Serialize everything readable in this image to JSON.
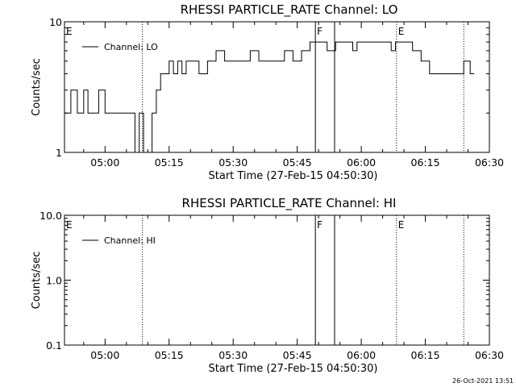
{
  "footer": "26-Oct-2021 13:51",
  "chart_data": [
    {
      "type": "line",
      "title": "RHESSI PARTICLE_RATE Channel: LO",
      "xlabel": "Start Time (27-Feb-15 04:50:30)",
      "ylabel": "Counts/sec",
      "y_scale": "log",
      "xlim": [
        "04:50:30",
        "06:30"
      ],
      "ylim": [
        1,
        10
      ],
      "x_ticks": [
        "05:00",
        "05:15",
        "05:30",
        "05:45",
        "06:00",
        "06:15",
        "06:30"
      ],
      "y_ticks": [
        "1",
        "10"
      ],
      "legend": {
        "label": "Channel: LO",
        "placement": "top-left"
      },
      "series": [
        {
          "name": "Channel: LO",
          "x": [
            "04:50:30",
            "04:52:00",
            "04:53:30",
            "04:55:00",
            "04:56:00",
            "04:57:00",
            "04:58:30",
            "05:00:00",
            "05:01:30",
            "05:03:00",
            "05:04:00",
            "05:05:00",
            "05:06:00",
            "05:07:00",
            "05:08:00",
            "05:09:00",
            "05:10:00",
            "05:11:00",
            "05:12:00",
            "05:13:00",
            "05:14:00",
            "05:15:00",
            "05:16:00",
            "05:17:00",
            "05:18:00",
            "05:19:00",
            "05:20:00",
            "05:22:00",
            "05:24:00",
            "05:25:00",
            "05:26:00",
            "05:28:00",
            "05:30:00",
            "05:32:00",
            "05:34:00",
            "05:36:00",
            "05:38:00",
            "05:40:00",
            "05:42:00",
            "05:44:00",
            "05:46:00",
            "05:48:00",
            "05:50:00",
            "05:52:00",
            "05:54:00",
            "05:56:00",
            "05:57:00",
            "05:58:00",
            "05:59:00",
            "06:00:00",
            "06:02:00",
            "06:04:00",
            "06:06:00",
            "06:07:00",
            "06:08:00",
            "06:09:00",
            "06:10:00",
            "06:12:00",
            "06:14:00",
            "06:16:00",
            "06:18:00",
            "06:20:00",
            "06:22:00",
            "06:24:00",
            "06:25:30"
          ],
          "values": [
            2,
            3,
            2,
            3,
            2,
            2,
            3,
            2,
            2,
            2,
            2,
            2,
            2,
            1,
            2,
            1,
            1,
            2,
            3,
            4,
            4,
            5,
            4,
            5,
            4,
            5,
            5,
            4,
            5,
            5,
            6,
            5,
            5,
            5,
            6,
            5,
            5,
            5,
            6,
            5,
            6,
            7,
            7,
            6,
            7,
            7,
            7,
            6,
            7,
            7,
            7,
            7,
            7,
            6,
            7,
            7,
            7,
            6,
            5,
            4,
            4,
            4,
            4,
            5,
            4
          ]
        }
      ],
      "annotations": [
        {
          "label": "E",
          "x": "04:50:30"
        },
        {
          "label": "F",
          "x": "05:49:15"
        },
        {
          "label": "E",
          "x": "06:08:15"
        }
      ]
    },
    {
      "type": "line",
      "title": "RHESSI PARTICLE_RATE Channel: HI",
      "xlabel": "Start Time (27-Feb-15 04:50:30)",
      "ylabel": "Counts/sec",
      "y_scale": "log",
      "xlim": [
        "04:50:30",
        "06:30"
      ],
      "ylim": [
        0.1,
        10
      ],
      "x_ticks": [
        "05:00",
        "05:15",
        "05:30",
        "05:45",
        "06:00",
        "06:15",
        "06:30"
      ],
      "y_ticks": [
        "0.1",
        "1.0",
        "10.0"
      ],
      "legend": {
        "label": "Channel: HI",
        "placement": "top-left"
      },
      "series": [
        {
          "name": "Channel: HI",
          "x": [],
          "values": []
        }
      ],
      "annotations": [
        {
          "label": "E",
          "x": "04:50:30"
        },
        {
          "label": "F",
          "x": "05:49:15"
        },
        {
          "label": "E",
          "x": "06:08:15"
        }
      ]
    }
  ]
}
